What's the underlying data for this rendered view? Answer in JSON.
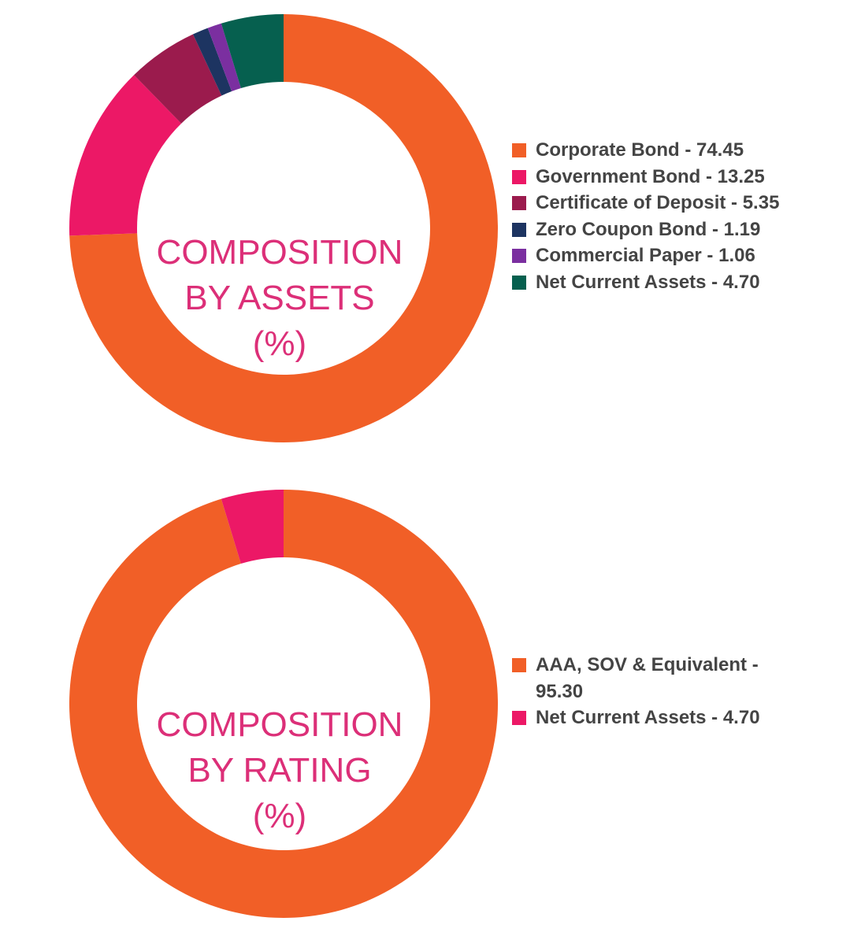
{
  "chart_data": [
    {
      "type": "pie",
      "title_lines": [
        "COMPOSITION",
        "BY ASSETS",
        "(%)"
      ],
      "series": [
        {
          "name": "Corporate Bond",
          "value": 74.45,
          "label": "Corporate Bond - 74.45",
          "color": "#f15f27"
        },
        {
          "name": "Government Bond",
          "value": 13.25,
          "label": "Government Bond - 13.25",
          "color": "#ec1866"
        },
        {
          "name": "Certificate of Deposit",
          "value": 5.35,
          "label": "Certificate of Deposit - 5.35",
          "color": "#9b1b4d"
        },
        {
          "name": "Zero Coupon Bond",
          "value": 1.19,
          "label": "Zero Coupon Bond - 1.19",
          "color": "#1d3461"
        },
        {
          "name": "Commercial Paper",
          "value": 1.06,
          "label": "Commercial Paper - 1.06",
          "color": "#7b2fa0"
        },
        {
          "name": "Net Current Assets",
          "value": 4.7,
          "label": "Net Current Assets - 4.70",
          "color": "#06604f"
        }
      ],
      "legend_position": "right"
    },
    {
      "type": "pie",
      "title_lines": [
        "COMPOSITION",
        "BY RATING",
        "(%)"
      ],
      "series": [
        {
          "name": "AAA, SOV & Equivalent",
          "value": 95.3,
          "label_lines": [
            "AAA, SOV & Equivalent -",
            "95.30"
          ],
          "color": "#f15f27"
        },
        {
          "name": "Net Current Assets",
          "value": 4.7,
          "label_lines": [
            "Net Current Assets - 4.70"
          ],
          "color": "#ec1866"
        }
      ],
      "legend_position": "right"
    }
  ]
}
